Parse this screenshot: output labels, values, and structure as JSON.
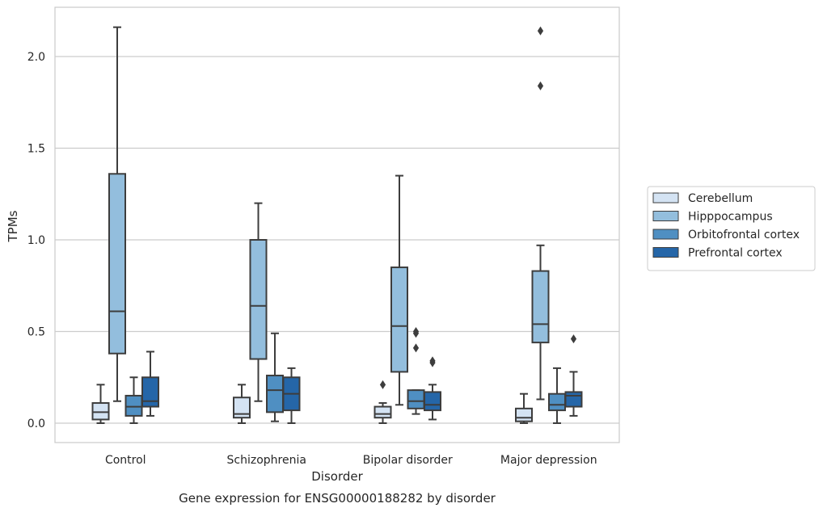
{
  "chart_data": {
    "type": "box",
    "title": "",
    "caption": "Gene expression for ENSG00000188282 by disorder",
    "xlabel": "Disorder",
    "ylabel": "TPMs",
    "ylim": [
      -0.1,
      2.28
    ],
    "yticks": [
      0.0,
      0.5,
      1.0,
      1.5,
      2.0
    ],
    "ytick_labels": [
      "0.0",
      "0.5",
      "1.0",
      "1.5",
      "2.0"
    ],
    "grid": "horizontal",
    "legend_position": "right",
    "categories": [
      "Control",
      "Schizophrenia",
      "Bipolar disorder",
      "Major depression"
    ],
    "series": [
      {
        "name": "Cerebellum",
        "color": "#d4e3f3",
        "boxes": [
          {
            "whisker_low": 0.0,
            "q1": 0.02,
            "median": 0.06,
            "q3": 0.11,
            "whisker_high": 0.21,
            "outliers": []
          },
          {
            "whisker_low": 0.0,
            "q1": 0.03,
            "median": 0.05,
            "q3": 0.14,
            "whisker_high": 0.21,
            "outliers": []
          },
          {
            "whisker_low": 0.0,
            "q1": 0.03,
            "median": 0.05,
            "q3": 0.09,
            "whisker_high": 0.11,
            "outliers": [
              0.21
            ]
          },
          {
            "whisker_low": 0.0,
            "q1": 0.01,
            "median": 0.03,
            "q3": 0.08,
            "whisker_high": 0.16,
            "outliers": []
          }
        ]
      },
      {
        "name": "Hipppocampus",
        "color": "#93bedd",
        "boxes": [
          {
            "whisker_low": 0.12,
            "q1": 0.38,
            "median": 0.61,
            "q3": 1.36,
            "whisker_high": 2.16,
            "outliers": []
          },
          {
            "whisker_low": 0.12,
            "q1": 0.35,
            "median": 0.64,
            "q3": 1.0,
            "whisker_high": 1.2,
            "outliers": []
          },
          {
            "whisker_low": 0.1,
            "q1": 0.28,
            "median": 0.53,
            "q3": 0.85,
            "whisker_high": 1.35,
            "outliers": []
          },
          {
            "whisker_low": 0.13,
            "q1": 0.44,
            "median": 0.54,
            "q3": 0.83,
            "whisker_high": 0.97,
            "outliers": [
              1.84,
              2.14
            ]
          }
        ]
      },
      {
        "name": "Orbitofrontal cortex",
        "color": "#4f8fc2",
        "boxes": [
          {
            "whisker_low": 0.0,
            "q1": 0.04,
            "median": 0.09,
            "q3": 0.15,
            "whisker_high": 0.25,
            "outliers": []
          },
          {
            "whisker_low": 0.01,
            "q1": 0.06,
            "median": 0.18,
            "q3": 0.26,
            "whisker_high": 0.49,
            "outliers": []
          },
          {
            "whisker_low": 0.05,
            "q1": 0.08,
            "median": 0.12,
            "q3": 0.18,
            "whisker_high": 0.18,
            "outliers": [
              0.41,
              0.49,
              0.5
            ]
          },
          {
            "whisker_low": 0.0,
            "q1": 0.07,
            "median": 0.1,
            "q3": 0.16,
            "whisker_high": 0.3,
            "outliers": []
          }
        ]
      },
      {
        "name": "Prefrontal cortex",
        "color": "#2566a8",
        "boxes": [
          {
            "whisker_low": 0.04,
            "q1": 0.09,
            "median": 0.12,
            "q3": 0.25,
            "whisker_high": 0.39,
            "outliers": []
          },
          {
            "whisker_low": 0.0,
            "q1": 0.07,
            "median": 0.16,
            "q3": 0.25,
            "whisker_high": 0.3,
            "outliers": []
          },
          {
            "whisker_low": 0.02,
            "q1": 0.07,
            "median": 0.1,
            "q3": 0.17,
            "whisker_high": 0.21,
            "outliers": [
              0.33,
              0.34
            ]
          },
          {
            "whisker_low": 0.04,
            "q1": 0.09,
            "median": 0.15,
            "q3": 0.17,
            "whisker_high": 0.28,
            "outliers": [
              0.46
            ]
          }
        ]
      }
    ]
  }
}
